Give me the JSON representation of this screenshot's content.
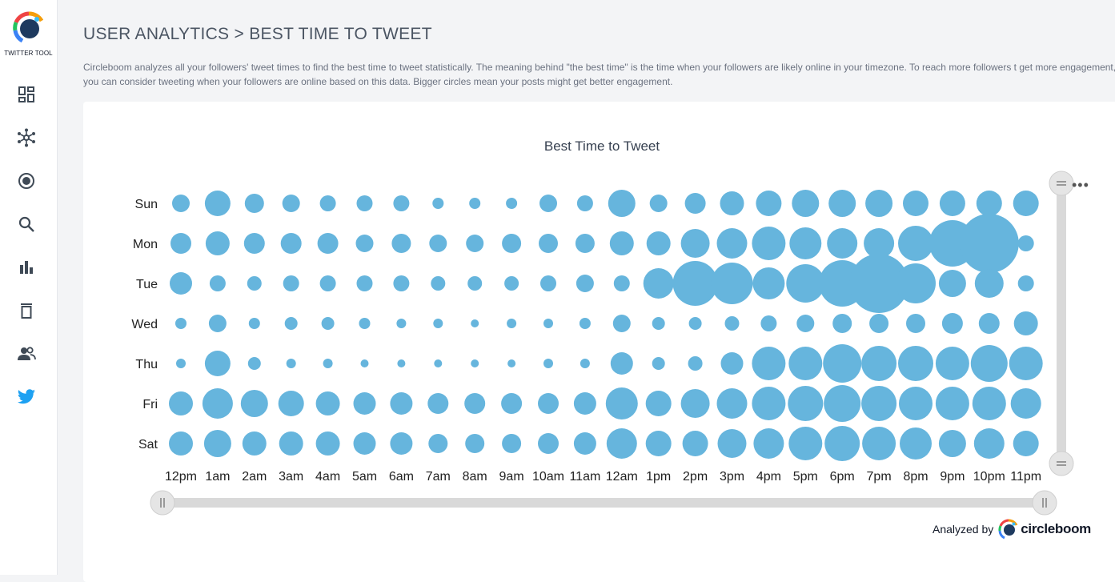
{
  "sidebar": {
    "logo_text": "TWITTER TOOL",
    "items": [
      {
        "icon": "dashboard-icon"
      },
      {
        "icon": "network-icon"
      },
      {
        "icon": "target-icon"
      },
      {
        "icon": "search-icon"
      },
      {
        "icon": "bar-chart-icon"
      },
      {
        "icon": "trash-icon"
      },
      {
        "icon": "users-icon"
      },
      {
        "icon": "twitter-bird-icon"
      }
    ]
  },
  "header": {
    "title": "USER ANALYTICS > BEST TIME TO TWEET",
    "description": "Circleboom analyzes all your followers' tweet times to find the best time to tweet statistically. The meaning behind \"the best time\" is the time when your followers are likely online in your timezone. To reach more followers t get more engagement, you can consider tweeting when your followers are online based on this data. Bigger circles mean your posts might get better engagement."
  },
  "chart_data": {
    "type": "bubble",
    "title": "Best Time to Tweet",
    "days": [
      "Sun",
      "Mon",
      "Tue",
      "Wed",
      "Thu",
      "Fri",
      "Sat"
    ],
    "hours": [
      "12pm",
      "1am",
      "2am",
      "3am",
      "4am",
      "5am",
      "6am",
      "7am",
      "8am",
      "9am",
      "10am",
      "11am",
      "12am",
      "1pm",
      "2pm",
      "3pm",
      "4pm",
      "5pm",
      "6pm",
      "7pm",
      "8pm",
      "9pm",
      "10pm",
      "11pm"
    ],
    "values": [
      [
        11,
        16,
        12,
        11,
        10,
        10,
        10,
        7,
        7,
        7,
        11,
        10,
        17,
        11,
        13,
        15,
        16,
        17,
        17,
        17,
        16,
        16,
        16,
        16
      ],
      [
        13,
        15,
        13,
        13,
        13,
        11,
        12,
        11,
        11,
        12,
        12,
        12,
        15,
        15,
        18,
        19,
        21,
        20,
        19,
        19,
        22,
        29,
        37,
        10
      ],
      [
        14,
        10,
        9,
        10,
        10,
        10,
        10,
        9,
        9,
        9,
        10,
        11,
        10,
        19,
        28,
        26,
        20,
        24,
        29,
        37,
        25,
        17,
        18,
        10
      ],
      [
        7,
        11,
        7,
        8,
        8,
        7,
        6,
        6,
        5,
        6,
        6,
        7,
        11,
        8,
        8,
        9,
        10,
        11,
        12,
        12,
        12,
        13,
        13,
        15
      ],
      [
        6,
        16,
        8,
        6,
        6,
        5,
        5,
        5,
        5,
        5,
        6,
        6,
        14,
        8,
        9,
        14,
        21,
        21,
        24,
        22,
        22,
        21,
        23,
        21
      ],
      [
        15,
        19,
        17,
        16,
        15,
        14,
        14,
        13,
        13,
        13,
        13,
        14,
        20,
        16,
        18,
        19,
        21,
        22,
        23,
        22,
        21,
        21,
        21,
        19
      ],
      [
        15,
        17,
        15,
        15,
        15,
        14,
        14,
        12,
        12,
        12,
        13,
        14,
        19,
        16,
        16,
        18,
        19,
        21,
        22,
        21,
        20,
        17,
        19,
        16
      ]
    ],
    "value_note": "bubble radius",
    "color": "#66b5dd"
  },
  "footer": {
    "analyzed_by": "Analyzed by",
    "brand": "circleboom"
  },
  "colors": {
    "bubble": "#66b5dd",
    "scrollbar": "#d9d9d9",
    "twitter": "#1da1f2"
  }
}
